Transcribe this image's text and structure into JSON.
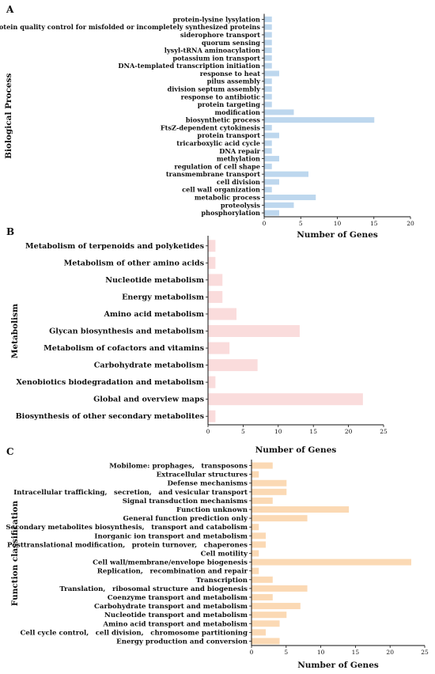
{
  "chart_data": [
    {
      "type": "bar",
      "orientation": "horizontal",
      "panel": "A",
      "xlabel": "Number of Genes",
      "ylabel": "Biological Process",
      "xlim": [
        0,
        20
      ],
      "xticks": [
        0,
        5,
        10,
        15,
        20
      ],
      "color": "#bdd7ee",
      "categories": [
        "protein-lysine lysylation",
        "protein quality control for misfolded or incompletely synthesized proteins",
        "siderophore transport",
        "quorum sensing",
        "lysyl-tRNA aminoacylation",
        "potassium ion transport",
        "DNA-templated transcription initiation",
        "response to heat",
        "pilus assembly",
        "division septum assembly",
        "response to antibiotic",
        "protein targeting",
        "modification",
        "biosynthetic process",
        "FtsZ-dependent cytokinesis",
        "protein transport",
        "tricarboxylic acid cycle",
        "DNA repair",
        "methylation",
        "regulation of cell shape",
        "transmembrane transport",
        "cell division",
        "cell wall organization",
        "metabolic process",
        "proteolysis",
        "phosphorylation"
      ],
      "values": [
        1,
        1,
        1,
        1,
        1,
        1,
        1,
        2,
        1,
        1,
        1,
        1,
        4,
        15,
        1,
        2,
        1,
        1,
        2,
        1,
        6,
        2,
        1,
        7,
        4,
        2
      ]
    },
    {
      "type": "bar",
      "orientation": "horizontal",
      "panel": "B",
      "xlabel": "Number of Genes",
      "ylabel": "Metabolism",
      "xlim": [
        0,
        25
      ],
      "xticks": [
        0,
        5,
        10,
        15,
        20,
        25
      ],
      "color": "#fadcdc",
      "categories": [
        "Metabolism of terpenoids and polyketides",
        "Metabolism of other amino acids",
        "Nucleotide metabolism",
        "Energy metabolism",
        "Amino acid metabolism",
        "Glycan biosynthesis and metabolism",
        "Metabolism of cofactors and vitamins",
        "Carbohydrate metabolism",
        "Xenobiotics biodegradation and metabolism",
        "Global and overview maps",
        "Biosynthesis of other secondary metabolites"
      ],
      "values": [
        1,
        1,
        2,
        2,
        4,
        13,
        3,
        7,
        1,
        22,
        1
      ]
    },
    {
      "type": "bar",
      "orientation": "horizontal",
      "panel": "C",
      "xlabel": "Number of Genes",
      "ylabel": "Function classification",
      "xlim": [
        0,
        25
      ],
      "xticks": [
        0,
        5,
        10,
        15,
        20,
        25
      ],
      "color": "#fbd9b4",
      "categories": [
        "Mobilome: prophages,　transposons",
        "Extracellular structures",
        "Defense mechanisms",
        "Intracellular trafficking,　secretion,　and vesicular transport",
        "Signal transduction mechanisms",
        "Function unknown",
        "General function prediction only",
        "Secondary metabolites biosynthesis,　transport and catabolism",
        "Inorganic ion transport and metabolism",
        "Posttranslational modification,　protein turnover,　chaperones",
        "Cell motility",
        "Cell wall/membrane/envelope biogenesis",
        "Replication,　recombination and repair",
        "Transcription",
        "Translation,　ribosomal structure and biogenesis",
        "Coenzyme transport and metabolism",
        "Carbohydrate transport and metabolism",
        "Nucleotide transport and metabolism",
        "Amino acid transport and metabolism",
        "Cell cycle control,　cell division,　chromosome partitioning",
        "Energy production and conversion"
      ],
      "values": [
        3,
        1,
        5,
        5,
        3,
        14,
        8,
        1,
        2,
        2,
        1,
        23,
        1,
        3,
        8,
        3,
        7,
        5,
        4,
        2,
        4
      ]
    }
  ]
}
